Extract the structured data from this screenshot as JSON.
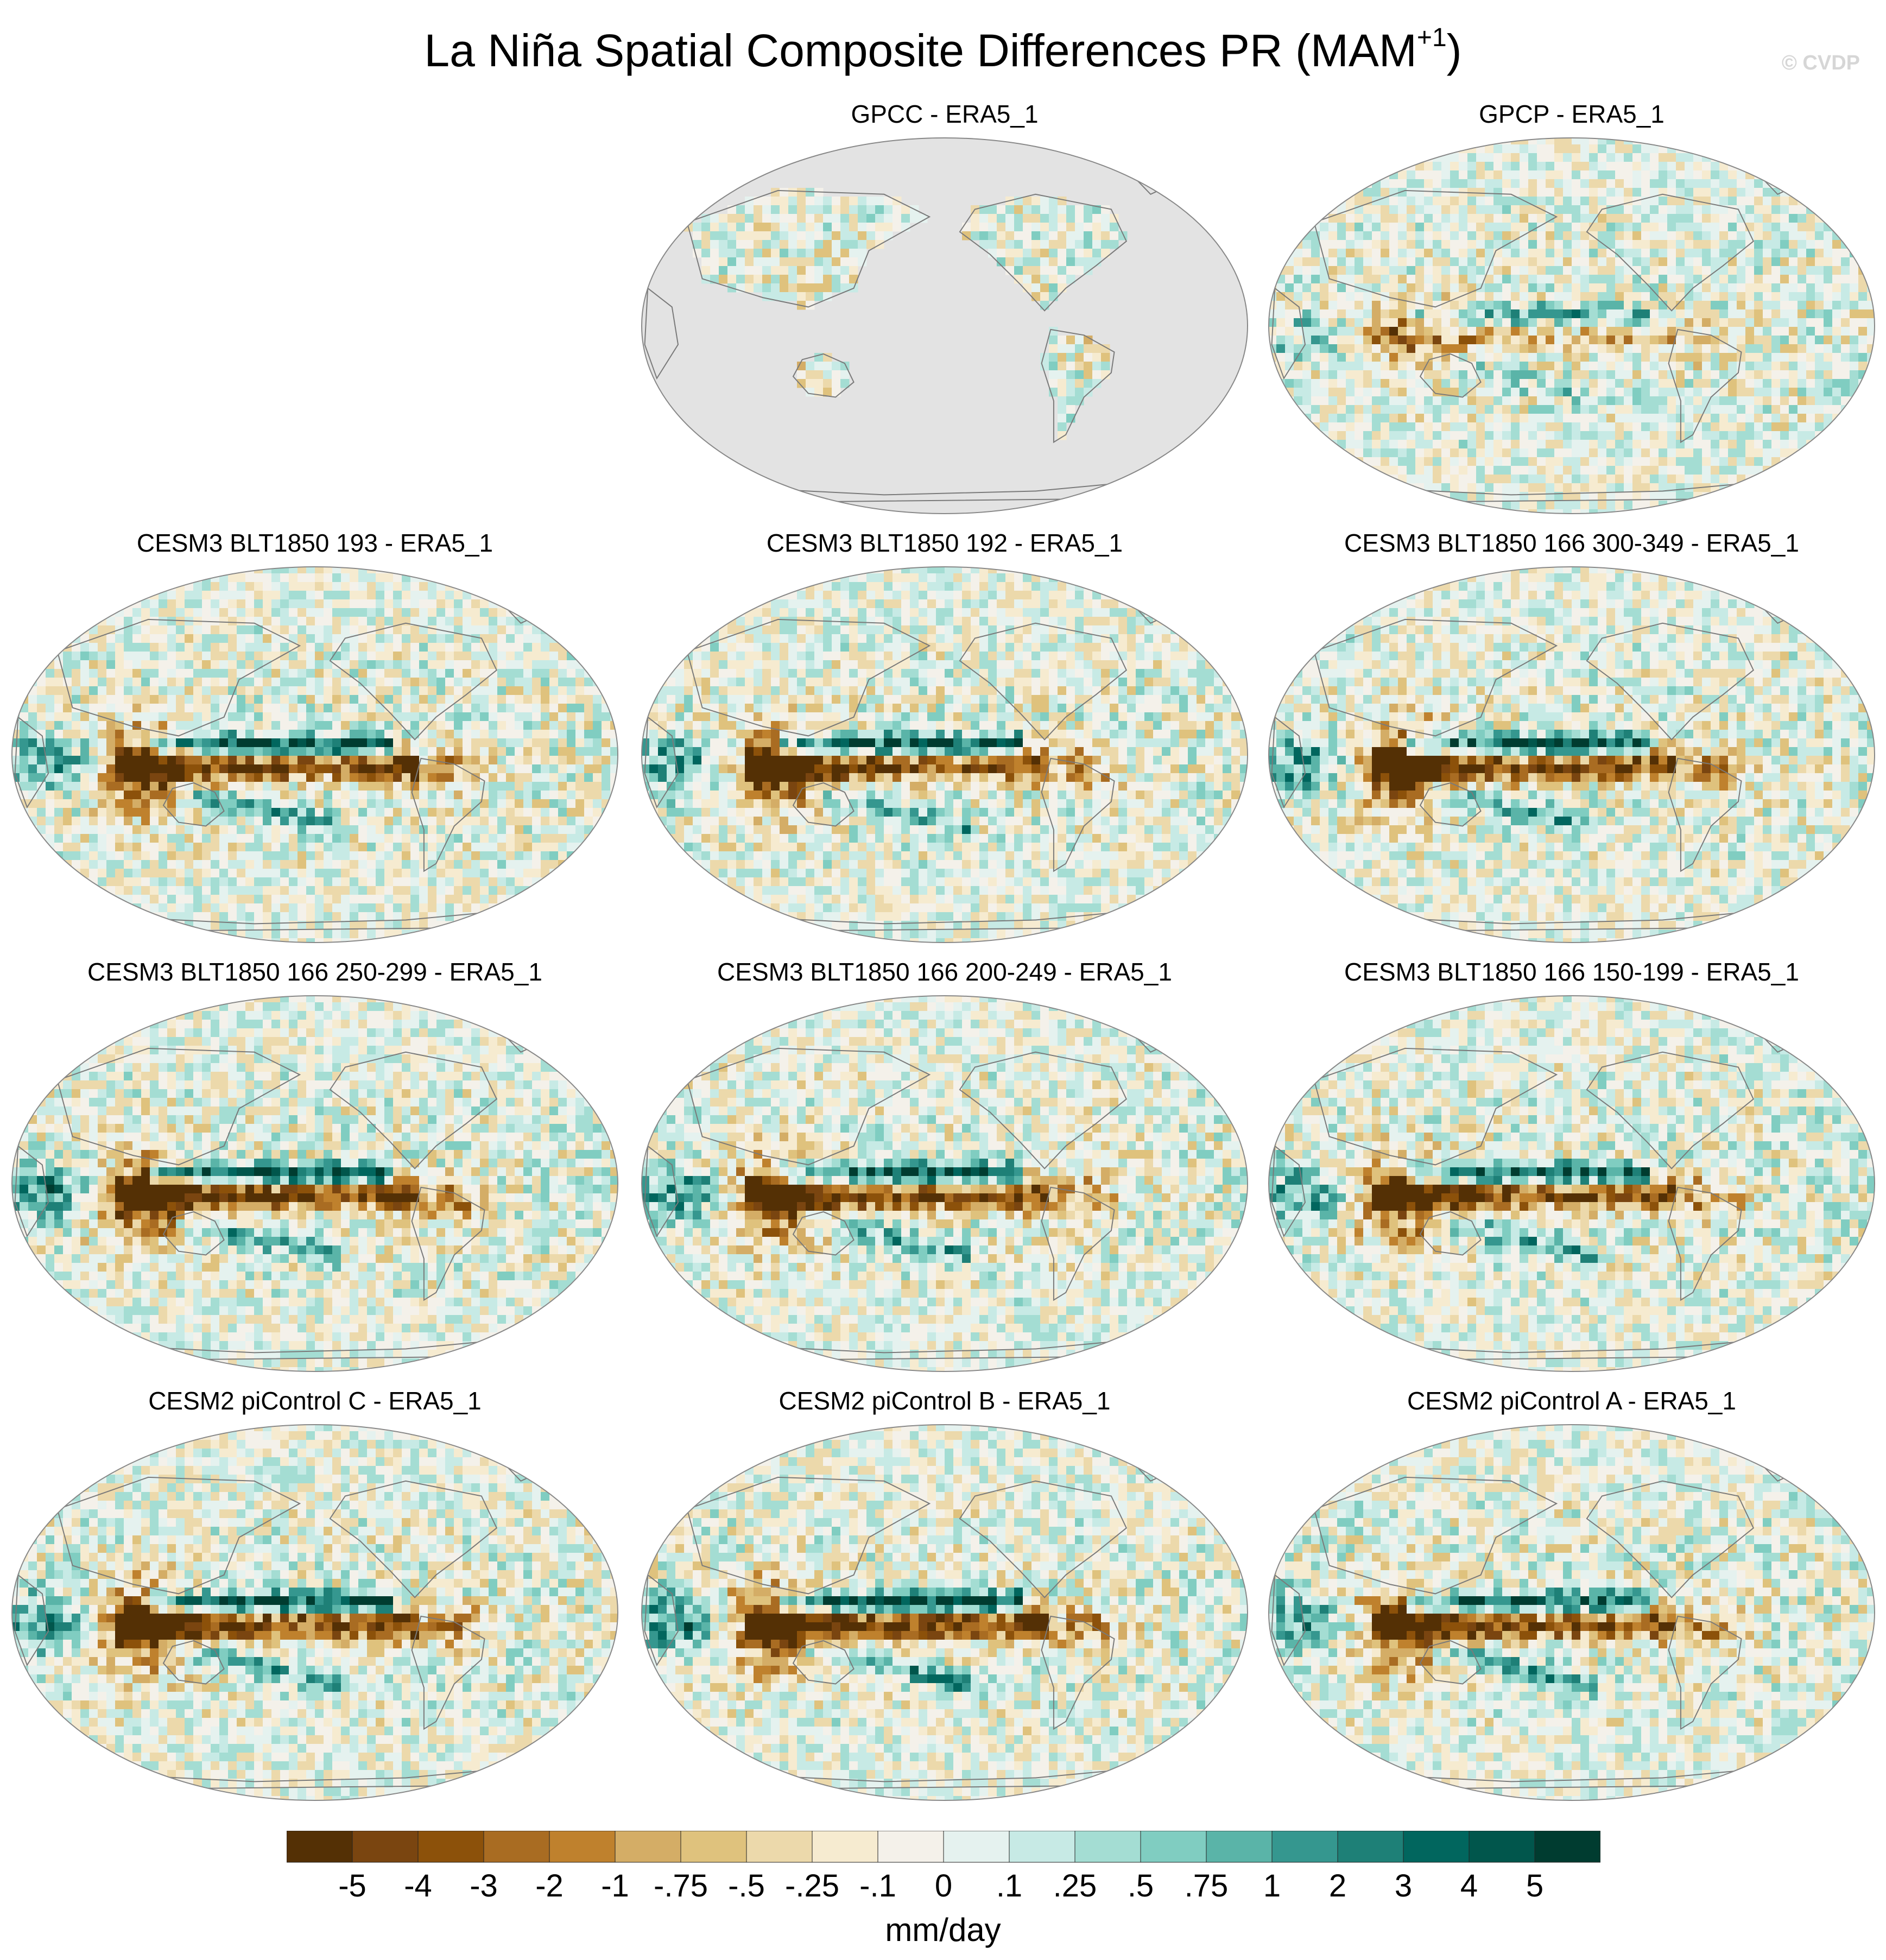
{
  "figure": {
    "title_main": "La Niña Spatial Composite Differences PR (MAM",
    "title_sup": "+1",
    "title_end": ")",
    "watermark": "© CVDP"
  },
  "panels": [
    {
      "title": "GPCC - ERA5_1",
      "land_only": true,
      "seed": 11,
      "enso": 0.35
    },
    {
      "title": "GPCP - ERA5_1",
      "land_only": false,
      "seed": 23,
      "enso": 0.45
    },
    {
      "title": "CESM3 BLT1850 193 - ERA5_1",
      "land_only": false,
      "seed": 37,
      "enso": 1.0
    },
    {
      "title": "CESM3 BLT1850 192 - ERA5_1",
      "land_only": false,
      "seed": 41,
      "enso": 1.0
    },
    {
      "title": "CESM3 BLT1850 166 300-349 - ERA5_1",
      "land_only": false,
      "seed": 53,
      "enso": 1.05
    },
    {
      "title": "CESM3 BLT1850 166 250-299 - ERA5_1",
      "land_only": false,
      "seed": 61,
      "enso": 1.1
    },
    {
      "title": "CESM3 BLT1850 166 200-249 - ERA5_1",
      "land_only": false,
      "seed": 71,
      "enso": 1.05
    },
    {
      "title": "CESM3 BLT1850 166 150-199 - ERA5_1",
      "land_only": false,
      "seed": 83,
      "enso": 1.0
    },
    {
      "title": "CESM2 piControl C - ERA5_1",
      "land_only": false,
      "seed": 97,
      "enso": 1.1
    },
    {
      "title": "CESM2 piControl B - ERA5_1",
      "land_only": false,
      "seed": 101,
      "enso": 1.15
    },
    {
      "title": "CESM2 piControl A - ERA5_1",
      "land_only": false,
      "seed": 113,
      "enso": 1.0
    }
  ],
  "colorbar": {
    "colors": [
      "#543005",
      "#7a4510",
      "#8c510a",
      "#a96c22",
      "#bf812d",
      "#d4ad66",
      "#dfc27d",
      "#ecd9ab",
      "#f6ebd0",
      "#f4f1ea",
      "#e5f2ef",
      "#c7eae5",
      "#a4ddd3",
      "#80cdc1",
      "#5ab4a8",
      "#35978f",
      "#1e8077",
      "#01665e",
      "#01564c",
      "#003c30"
    ],
    "labels": [
      "-5",
      "-4",
      "-3",
      "-2",
      "-1",
      "-.75",
      "-.5",
      "-.25",
      "-.1",
      "0",
      ".1",
      ".25",
      ".5",
      ".75",
      "1",
      "2",
      "3",
      "4",
      "5"
    ],
    "units": "mm/day"
  }
}
